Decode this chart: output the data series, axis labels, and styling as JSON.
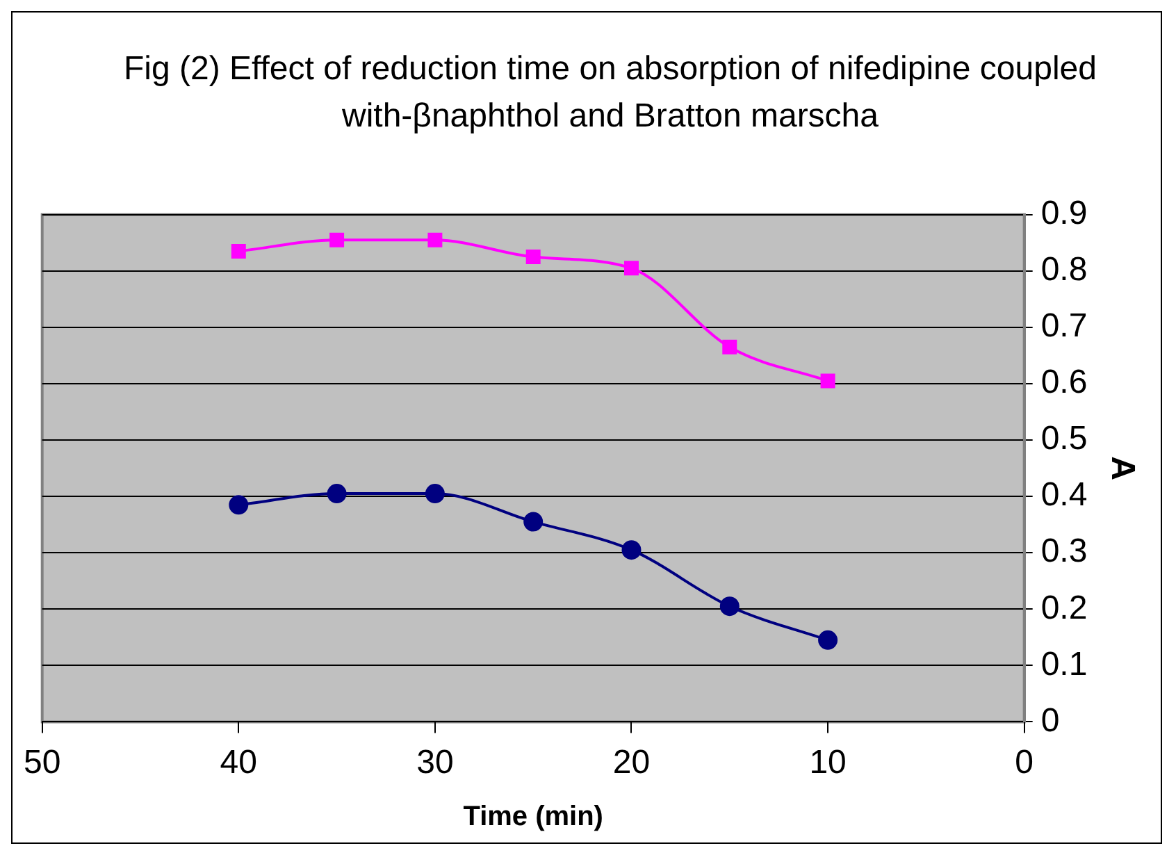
{
  "chart_data": {
    "type": "line",
    "title": "Fig (2) Effect of reduction time on absorption of nifedipine coupled with-βnaphthol and Bratton marscha",
    "xlabel": "Time (min)",
    "ylabel": "A",
    "x": [
      40,
      35,
      30,
      25,
      20,
      15,
      10
    ],
    "series": [
      {
        "color": "#ff00ff",
        "marker": "square",
        "values": [
          0.835,
          0.855,
          0.855,
          0.825,
          0.805,
          0.665,
          0.605
        ]
      },
      {
        "color": "#000080",
        "marker": "circle",
        "values": [
          0.385,
          0.405,
          0.405,
          0.355,
          0.305,
          0.205,
          0.145
        ]
      }
    ],
    "xlim": [
      50,
      0
    ],
    "xticks": [
      50,
      40,
      30,
      20,
      10,
      0
    ],
    "ylim": [
      0,
      0.9
    ],
    "yticks": [
      0,
      0.1,
      0.2,
      0.3,
      0.4,
      0.5,
      0.6,
      0.7,
      0.8,
      0.9
    ],
    "grid": "y",
    "legend": false
  }
}
